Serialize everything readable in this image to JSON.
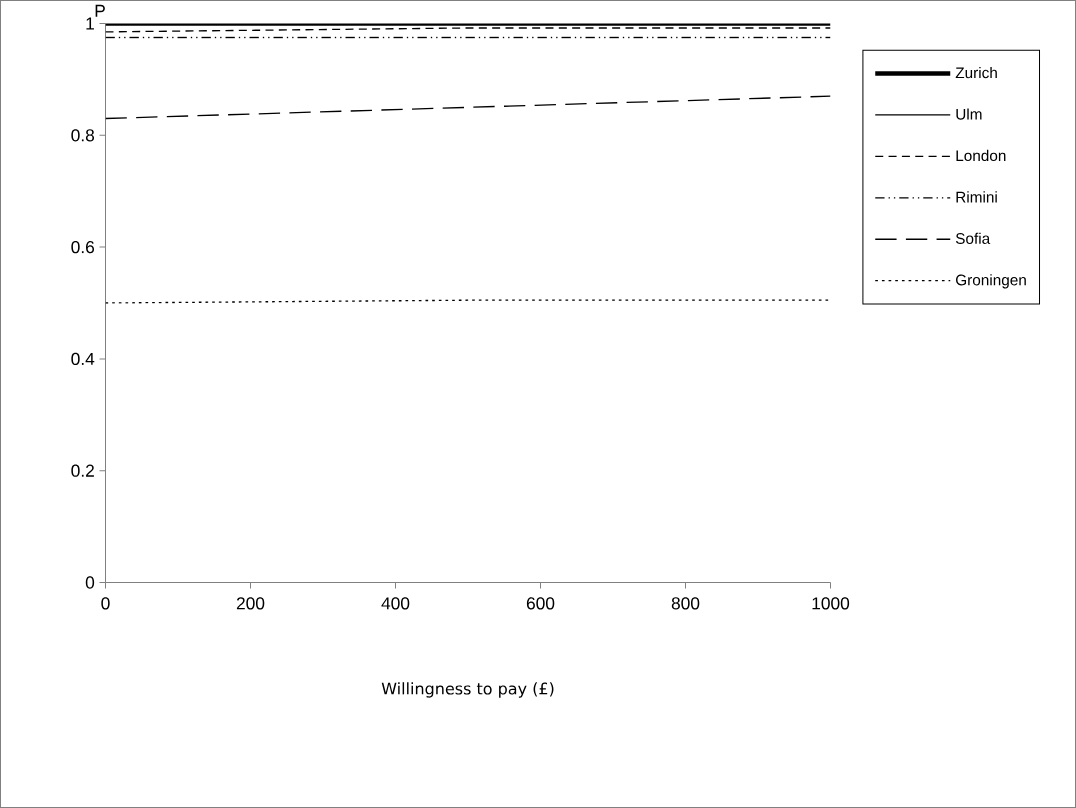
{
  "chart_data": {
    "type": "line",
    "ylabel": "P",
    "xlabel": "Willingness to pay (£)",
    "x": [
      0,
      500,
      1000
    ],
    "xlim": [
      0,
      1000
    ],
    "xticks": [
      0,
      200,
      400,
      600,
      800,
      1000
    ],
    "ylim": [
      0,
      1
    ],
    "yticks": [
      0,
      0.2,
      0.4,
      0.6,
      0.8,
      1
    ],
    "legend": "right",
    "series": [
      {
        "name": "Zurich",
        "color": "#000000",
        "line_style": "solid",
        "values": [
          1.0,
          1.0,
          1.0
        ]
      },
      {
        "name": "Ulm",
        "color": "#000000",
        "line_style": "solid",
        "values": [
          null,
          null,
          null
        ]
      },
      {
        "name": "London",
        "color": "#000000",
        "line_style": "dashed",
        "values": [
          0.985,
          0.992,
          0.992
        ]
      },
      {
        "name": "Rimini",
        "color": "#000000",
        "line_style": "dashdotdotted",
        "values": [
          0.975,
          0.975,
          0.975
        ]
      },
      {
        "name": "Sofia",
        "color": "#000000",
        "line_style": "longdashed",
        "values": [
          0.83,
          0.85,
          0.87
        ]
      },
      {
        "name": "Groningen",
        "color": "#000000",
        "line_style": "dotted",
        "values": [
          0.5,
          0.505,
          0.505
        ]
      }
    ]
  }
}
